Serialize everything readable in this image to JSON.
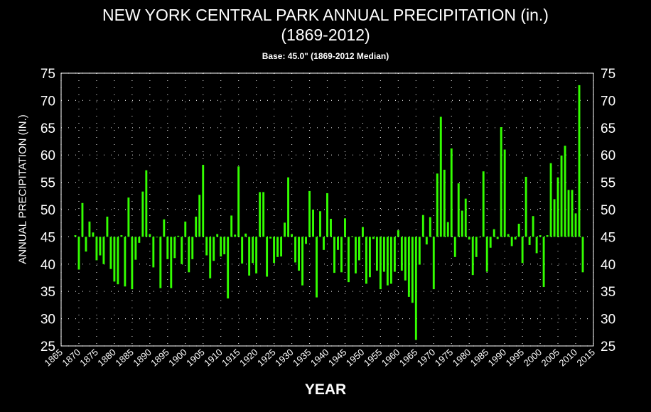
{
  "colors": {
    "background": "#000000",
    "bar": "#33ff00",
    "text": "#ffffff",
    "grid": "#d0d0d0"
  },
  "chart_data": {
    "type": "bar",
    "title": "NEW YORK CENTRAL PARK ANNUAL PRECIPITATION (in.)",
    "subtitle": "(1869-2012)",
    "note": "Base: 45.0\" (1869-2012 Median)",
    "xlabel": "YEAR",
    "ylabel": "ANNUAL PRECIPITATION (IN.)",
    "baseline": 45.0,
    "xlim": [
      1865,
      2015
    ],
    "ylim": [
      25,
      75
    ],
    "xticks": [
      "1865",
      "1870",
      "1875",
      "1880",
      "1885",
      "1890",
      "1895",
      "1900",
      "1905",
      "1910",
      "1915",
      "1920",
      "1925",
      "1930",
      "1935",
      "1940",
      "1945",
      "1950",
      "1955",
      "1960",
      "1965",
      "1970",
      "1975",
      "1980",
      "1985",
      "1990",
      "1995",
      "2000",
      "2005",
      "2010",
      "2015"
    ],
    "yticks": [
      "75",
      "70",
      "65",
      "60",
      "55",
      "50",
      "45",
      "40",
      "35",
      "30",
      "25"
    ],
    "grid": true,
    "years": [
      1869,
      1870,
      1871,
      1872,
      1873,
      1874,
      1875,
      1876,
      1877,
      1878,
      1879,
      1880,
      1881,
      1882,
      1883,
      1884,
      1885,
      1886,
      1887,
      1888,
      1889,
      1890,
      1891,
      1892,
      1893,
      1894,
      1895,
      1896,
      1897,
      1898,
      1899,
      1900,
      1901,
      1902,
      1903,
      1904,
      1905,
      1906,
      1907,
      1908,
      1909,
      1910,
      1911,
      1912,
      1913,
      1914,
      1915,
      1916,
      1917,
      1918,
      1919,
      1920,
      1921,
      1922,
      1923,
      1924,
      1925,
      1926,
      1927,
      1928,
      1929,
      1930,
      1931,
      1932,
      1933,
      1934,
      1935,
      1936,
      1937,
      1938,
      1939,
      1940,
      1941,
      1942,
      1943,
      1944,
      1945,
      1946,
      1947,
      1948,
      1949,
      1950,
      1951,
      1952,
      1953,
      1954,
      1955,
      1956,
      1957,
      1958,
      1959,
      1960,
      1961,
      1962,
      1963,
      1964,
      1965,
      1966,
      1967,
      1968,
      1969,
      1970,
      1971,
      1972,
      1973,
      1974,
      1975,
      1976,
      1977,
      1978,
      1979,
      1980,
      1981,
      1982,
      1983,
      1984,
      1985,
      1986,
      1987,
      1988,
      1989,
      1990,
      1991,
      1992,
      1993,
      1994,
      1995,
      1996,
      1997,
      1998,
      1999,
      2000,
      2001,
      2002,
      2003,
      2004,
      2005,
      2006,
      2007,
      2008,
      2009,
      2010,
      2011,
      2012
    ],
    "values": [
      45.3,
      39.0,
      51.2,
      42.3,
      47.8,
      45.8,
      40.7,
      41.6,
      40.0,
      48.7,
      39.1,
      36.8,
      36.3,
      45.3,
      35.9,
      52.2,
      35.4,
      40.8,
      43.9,
      53.3,
      57.2,
      45.5,
      39.4,
      45.0,
      35.6,
      48.2,
      40.9,
      35.6,
      41.1,
      45.2,
      40.0,
      47.8,
      38.5,
      40.9,
      48.7,
      52.7,
      58.2,
      41.6,
      37.4,
      40.6,
      45.5,
      41.4,
      41.8,
      33.7,
      48.9,
      45.4,
      57.9,
      40.1,
      45.6,
      37.9,
      40.2,
      38.3,
      53.2,
      53.2,
      37.7,
      44.7,
      40.2,
      41.3,
      41.4,
      47.6,
      55.9,
      45.5,
      40.3,
      38.8,
      36.1,
      43.7,
      53.4,
      50.0,
      33.9,
      49.7,
      42.6,
      53.0,
      48.3,
      38.4,
      42.6,
      38.5,
      48.4,
      36.7,
      45.1,
      38.3,
      40.7,
      46.8,
      36.4,
      37.6,
      44.6,
      38.8,
      35.4,
      38.6,
      36.1,
      36.4,
      38.6,
      46.2,
      38.8,
      37.0,
      34.0,
      32.9,
      26.1,
      39.9,
      49.0,
      43.6,
      48.6,
      35.4,
      56.6,
      67.0,
      57.3,
      47.7,
      61.2,
      41.3,
      54.8,
      49.8,
      52.0,
      44.5,
      38.0,
      41.3,
      44.9,
      57.0,
      38.6,
      43.0,
      46.4,
      44.6,
      65.1,
      61.0,
      45.5,
      43.3,
      44.5,
      47.4,
      40.2,
      56.0,
      43.5,
      48.8,
      42.0,
      45.3,
      35.8,
      45.3,
      58.5,
      51.9,
      55.9,
      59.9,
      61.7,
      53.6,
      53.6,
      49.3,
      72.8,
      38.5
    ]
  }
}
